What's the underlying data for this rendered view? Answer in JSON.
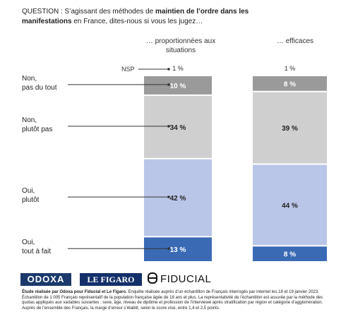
{
  "question": {
    "prefix": "QUESTION : S’agissant des méthodes de ",
    "bold": "maintien de l’ordre dans les manifestations",
    "suffix": " en France, dites-nous si vous les jugez…"
  },
  "columns": {
    "left": "… proportionnées aux situations",
    "right": "… efficaces"
  },
  "chart_data": {
    "type": "bar",
    "stacked": true,
    "categories": [
      "… proportionnées aux situations",
      "… efficaces"
    ],
    "series": [
      {
        "name": "Oui, tout à fait",
        "values": [
          13,
          8
        ],
        "labels": [
          "13 %",
          "8 %"
        ],
        "color": "#3a6ab4"
      },
      {
        "name": "Oui, plutôt",
        "values": [
          42,
          44
        ],
        "labels": [
          "42 %",
          "44 %"
        ],
        "color": "#bac6e8"
      },
      {
        "name": "Non, plutôt pas",
        "values": [
          34,
          39
        ],
        "labels": [
          "34 %",
          "39 %"
        ],
        "color": "#cfcfcf"
      },
      {
        "name": "Non, pas du tout",
        "values": [
          10,
          8
        ],
        "labels": [
          "10 %",
          "8 %"
        ],
        "color": "#9a9a9a"
      },
      {
        "name": "NSP",
        "values": [
          1,
          1
        ],
        "labels": [
          "1 %",
          "1 %"
        ],
        "color": "#ffffff"
      }
    ],
    "category_labels": [
      "Oui,\ntout à fait",
      "Oui,\nplutôt",
      "Non,\nplutôt pas",
      "Non,\npas du tout",
      "NSP"
    ]
  },
  "logos": {
    "odoxa": "ODOXA",
    "figaro": "LE FIGARO",
    "fiducial": "FIDUCIAL"
  },
  "study": {
    "bold": "Étude réalisée par Odoxa pour Fiducial et Le Figaro.",
    "text": " Enquête réalisée auprès d’un échantillon de Français interrogés par internet les 18 et 19 janvier 2023. Échantillon de 1 005 Français représentatif de la population française âgée de 18 ans et plus. La représentativité de l’échantillon est assurée par la méthode des quotas appliqués aux variables suivantes : sexe, âge, niveau de diplôme et profession de l’interviewé après stratification par région et catégorie d’agglomération. Auprès de l’ensemble des Français, la marge d’erreur s’établit, selon le score visé, entre 1,4 et 2,5 points."
  }
}
